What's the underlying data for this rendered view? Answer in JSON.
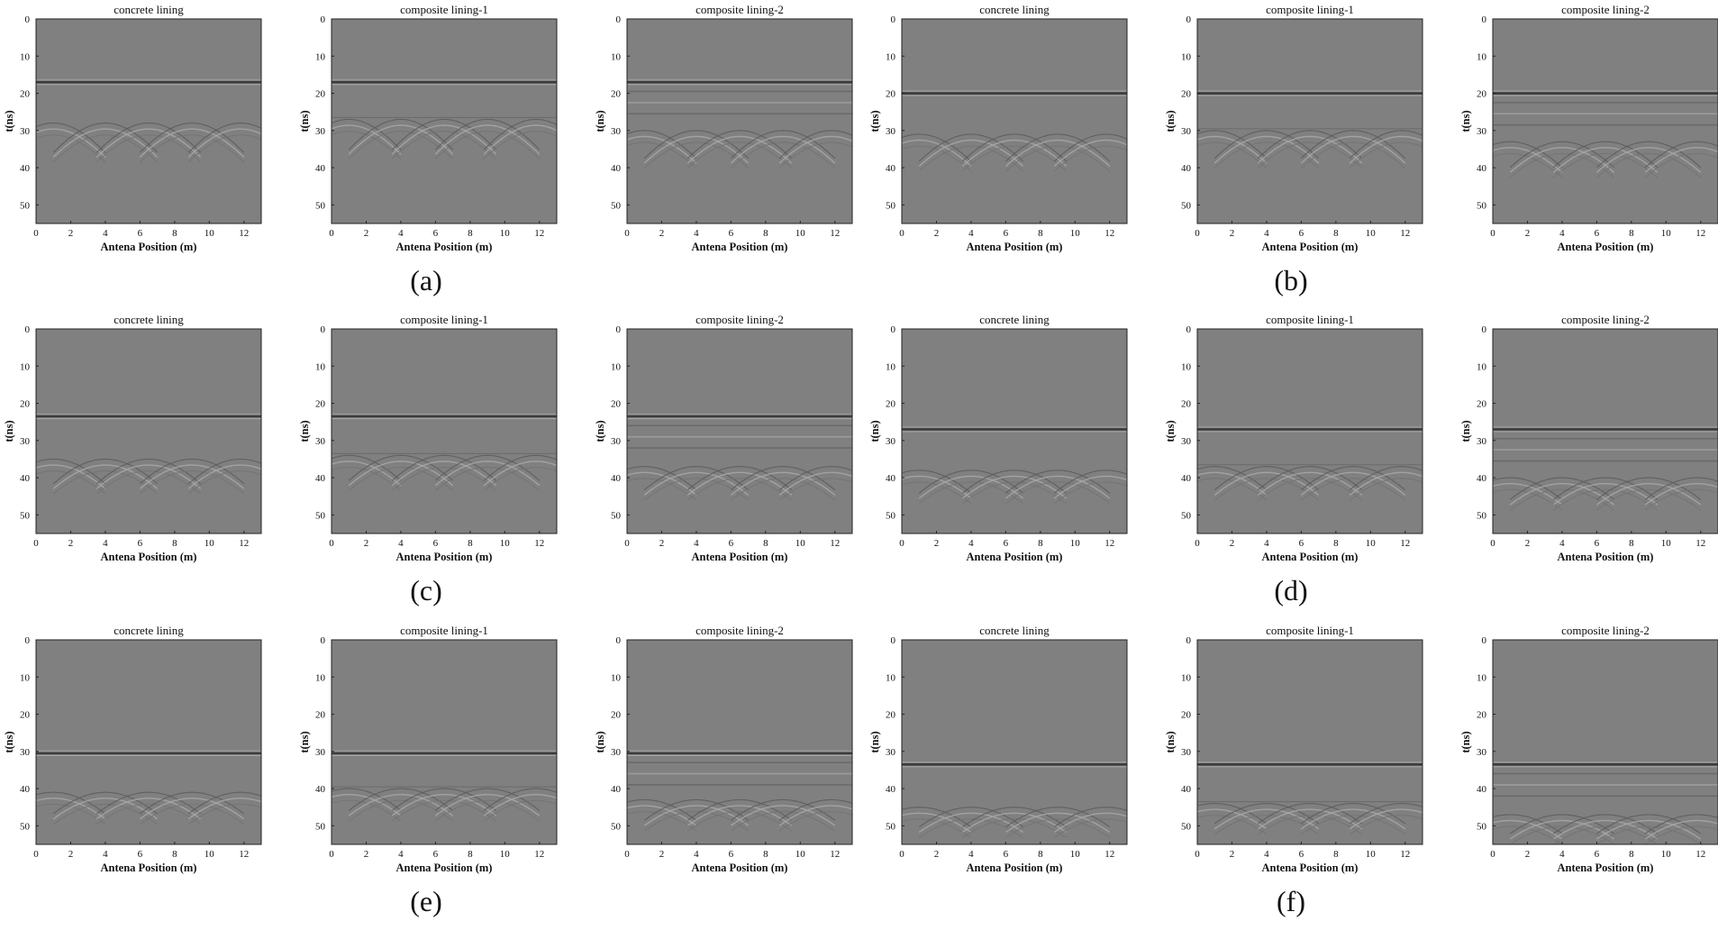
{
  "figure": {
    "groups": [
      {
        "label": "(a)",
        "reflector_ns": [
          17,
          17,
          17
        ],
        "hyperbola_ns": [
          28,
          27,
          30
        ]
      },
      {
        "label": "(b)",
        "reflector_ns": [
          20,
          20,
          20
        ],
        "hyperbola_ns": [
          31,
          30,
          33
        ]
      },
      {
        "label": "(c)",
        "reflector_ns": [
          23.5,
          23.5,
          23.5
        ],
        "hyperbola_ns": [
          35,
          34,
          37
        ]
      },
      {
        "label": "(d)",
        "reflector_ns": [
          27,
          27,
          27
        ],
        "hyperbola_ns": [
          38,
          37,
          40
        ]
      },
      {
        "label": "(e)",
        "reflector_ns": [
          30.5,
          30.5,
          30.5
        ],
        "hyperbola_ns": [
          41,
          40,
          43
        ]
      },
      {
        "label": "(f)",
        "reflector_ns": [
          33.5,
          33.5,
          33.5
        ],
        "hyperbola_ns": [
          45,
          44,
          47
        ]
      }
    ],
    "colors": {
      "background": "#808080",
      "frame": "#222222",
      "text": "#111111"
    }
  },
  "chart_data": {
    "type": "heatmap",
    "description_kind": "GPR B-scan radargram panels",
    "panel_titles": [
      "concrete lining",
      "composite lining-1",
      "composite lining-2"
    ],
    "xlabel": "Antena Position (m)",
    "ylabel": "t(ns)",
    "xlim": [
      0,
      13
    ],
    "ylim": [
      55,
      0
    ],
    "xticks": [
      0,
      2,
      4,
      6,
      8,
      10,
      12
    ],
    "yticks": [
      0,
      10,
      20,
      30,
      40,
      50
    ],
    "hyperbola_apex_positions_m": [
      1,
      4,
      6.5,
      9,
      11.8
    ]
  }
}
